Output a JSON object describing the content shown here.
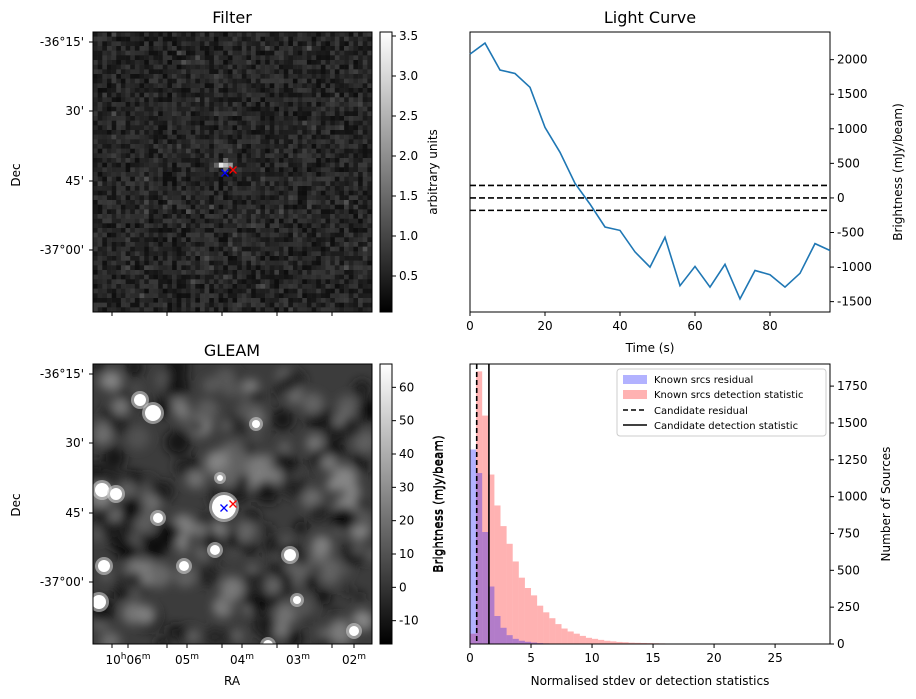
{
  "chart_data": [
    {
      "type": "heatmap",
      "title": "Filter",
      "ylabel": "Dec",
      "y_ticks": [
        "-36°15'",
        "30'",
        "45'",
        "-37°00'"
      ],
      "colorbar": {
        "label": "arbitrary units",
        "range": [
          0.05,
          3.55
        ],
        "ticks": [
          "0.5",
          "1.0",
          "1.5",
          "2.0",
          "2.5",
          "3.0",
          "3.5"
        ],
        "colormap": "gray"
      },
      "markers": [
        {
          "name": "blue-cross",
          "color": "#0000ff",
          "symbol": "x"
        },
        {
          "name": "red-cross",
          "color": "#ff0000",
          "symbol": "x"
        }
      ]
    },
    {
      "type": "line",
      "title": "Light Curve",
      "xlabel": "Time (s)",
      "ylabel": "Brightness (mJy/beam)",
      "xlim": [
        0,
        96
      ],
      "ylim": [
        -1650,
        2400
      ],
      "x_ticks": [
        "0",
        "20",
        "40",
        "60",
        "80"
      ],
      "y_ticks": [
        "-1500",
        "-1000",
        "-500",
        "0",
        "500",
        "1000",
        "1500",
        "2000"
      ],
      "y_axis_side": "right",
      "series": [
        {
          "color": "#1f77b4",
          "x": [
            0,
            4,
            8,
            12,
            16,
            20,
            24,
            28,
            32,
            36,
            40,
            44,
            48,
            52,
            56,
            60,
            64,
            68,
            72,
            76,
            80,
            84,
            88,
            92,
            96
          ],
          "y": [
            2080,
            2240,
            1850,
            1800,
            1600,
            1020,
            660,
            210,
            -90,
            -420,
            -470,
            -780,
            -1000,
            -570,
            -1270,
            -990,
            -1290,
            -960,
            -1460,
            -1050,
            -1110,
            -1290,
            -1090,
            -660,
            -760
          ]
        }
      ],
      "hlines": [
        {
          "y": 180,
          "style": "dashed"
        },
        {
          "y": 0,
          "style": "dashed"
        },
        {
          "y": -180,
          "style": "dashed"
        }
      ]
    },
    {
      "type": "heatmap",
      "title": "GLEAM",
      "xlabel": "RA",
      "ylabel": "Dec",
      "x_ticks": [
        "10h06m",
        "05m",
        "04m",
        "03m",
        "02m"
      ],
      "y_ticks": [
        "-36°15'",
        "30'",
        "45'",
        "-37°00'"
      ],
      "colorbar": {
        "label": "Brightness (mJy/beam)",
        "range": [
          -17,
          67
        ],
        "ticks": [
          "-10",
          "0",
          "10",
          "20",
          "30",
          "40",
          "50",
          "60"
        ],
        "colormap": "gray"
      },
      "markers": [
        {
          "name": "blue-cross",
          "color": "#0000ff",
          "symbol": "x"
        },
        {
          "name": "red-cross",
          "color": "#ff0000",
          "symbol": "x"
        }
      ]
    },
    {
      "type": "bar",
      "xlabel": "Normalised stdev or detection statistics",
      "ylabel": "Number of Sources",
      "left_ylabel": "Brightness (mJy/beam)",
      "xlim": [
        0,
        29.5
      ],
      "ylim": [
        0,
        1900
      ],
      "x_ticks": [
        "0",
        "5",
        "10",
        "15",
        "20",
        "25"
      ],
      "y_ticks": [
        "0",
        "250",
        "500",
        "750",
        "1000",
        "1250",
        "1500",
        "1750"
      ],
      "bin_width": 0.5,
      "legend_position": "upper right",
      "series": [
        {
          "name": "Known srcs residual",
          "color": "#0000ff",
          "alpha": 0.3,
          "bin_starts": [
            0,
            0.5,
            1.0,
            1.5,
            2.0,
            2.5,
            3.0,
            3.5,
            4.0,
            4.5,
            5.0,
            5.5,
            6.0,
            6.5
          ],
          "values": [
            1320,
            1160,
            760,
            390,
            190,
            110,
            60,
            35,
            22,
            15,
            10,
            6,
            4,
            3
          ]
        },
        {
          "name": "Known srcs detection statistic",
          "color": "#ff0000",
          "alpha": 0.3,
          "bin_starts": [
            0,
            0.5,
            1.0,
            1.5,
            2.0,
            2.5,
            3.0,
            3.5,
            4.0,
            4.5,
            5.0,
            5.5,
            6.0,
            6.5,
            7.0,
            7.5,
            8.0,
            8.5,
            9.0,
            9.5,
            10.0,
            10.5,
            11.0,
            11.5,
            12.0,
            12.5,
            13.0,
            13.5,
            14.0,
            14.5,
            15.0,
            15.5,
            16.0,
            16.5,
            17.0,
            17.5,
            18.0,
            18.5,
            19.0,
            20.0,
            21.0,
            22.0,
            24.0,
            27.5
          ],
          "values": [
            70,
            1850,
            1550,
            1150,
            940,
            800,
            680,
            560,
            450,
            380,
            330,
            260,
            215,
            175,
            135,
            105,
            85,
            70,
            55,
            42,
            35,
            28,
            22,
            18,
            14,
            12,
            9,
            8,
            7,
            6,
            5,
            4,
            3,
            3,
            2,
            2,
            2,
            1,
            1,
            1,
            1,
            1,
            1,
            1
          ]
        }
      ],
      "vlines": [
        {
          "name": "Candidate residual",
          "x": 0.55,
          "style": "dashed"
        },
        {
          "name": "Candidate detection statistic",
          "x": 1.55,
          "style": "solid"
        }
      ]
    }
  ]
}
